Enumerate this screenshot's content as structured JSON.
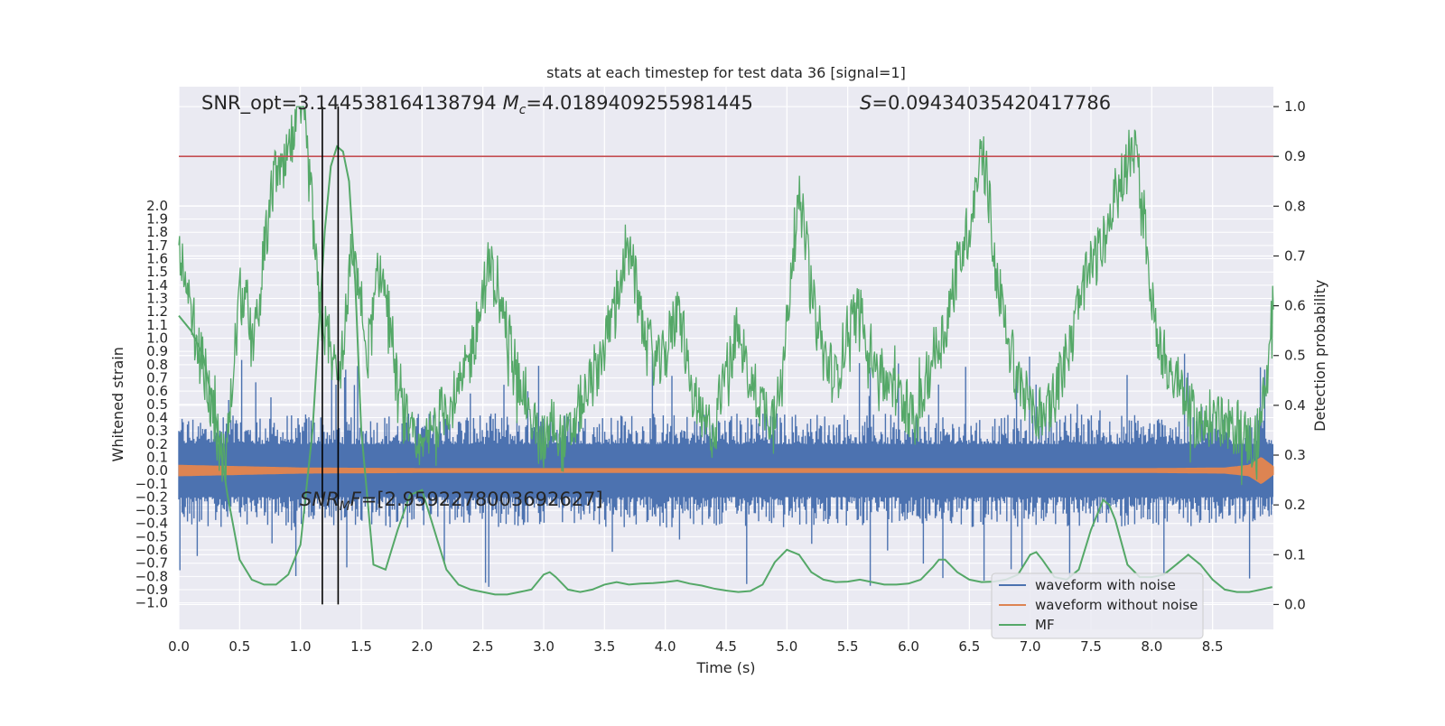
{
  "chart_data": {
    "type": "line",
    "title": "stats at each timestep for test data 36 [signal=1]",
    "xlabel": "Time (s)",
    "ylabel": "Whitened strain",
    "ylabel_right": "Detection probability",
    "xlim": [
      0.0,
      9.0
    ],
    "ylim_left": [
      -1.2,
      2.9
    ],
    "ylim_right": [
      -0.05,
      1.04
    ],
    "x_ticks": [
      "0.0",
      "0.5",
      "1.0",
      "1.5",
      "2.0",
      "2.5",
      "3.0",
      "3.5",
      "4.0",
      "4.5",
      "5.0",
      "5.5",
      "6.0",
      "6.5",
      "7.0",
      "7.5",
      "8.0",
      "8.5"
    ],
    "y_left_ticks": [
      "2.0",
      "1.9",
      "1.8",
      "1.7",
      "1.6",
      "1.5",
      "1.4",
      "1.3",
      "1.2",
      "1.1",
      "1.0",
      "0.9",
      "0.8",
      "0.7",
      "0.6",
      "0.5",
      "0.4",
      "0.3",
      "0.2",
      "0.1",
      "0.0",
      "−0.1",
      "−0.2",
      "−0.3",
      "−0.4",
      "−0.5",
      "−0.6",
      "−0.7",
      "−0.8",
      "−0.9",
      "−1.0"
    ],
    "y_right_ticks": [
      "1.0",
      "0.9",
      "0.8",
      "0.7",
      "0.6",
      "0.5",
      "0.4",
      "0.3",
      "0.2",
      "0.1",
      "0.0"
    ],
    "annotations": {
      "snr_opt": "SNR_opt=3.144538164138794",
      "mc": "=4.0189409255981445",
      "mc_symbol": "M",
      "mc_subscript": "c",
      "s": "=0.09434035420417786",
      "s_symbol": "S",
      "snr_mf": "=[2.9592278003692627]",
      "snr_mf_symbol": "SNR",
      "snr_mf_sub": "M",
      "snr_mf_tail": "F"
    },
    "threshold": 0.9,
    "vlines": [
      1.18,
      1.31
    ],
    "legend_position": "lower-right",
    "colors": {
      "background": "#eaeaf2",
      "grid": "#ffffff",
      "noise": "#4c72b0",
      "clean": "#dd8452",
      "mf": "#55a868",
      "threshold": "#c44e52",
      "vline": "#000000"
    },
    "series": [
      {
        "name": "waveform with noise",
        "axis": "left",
        "style": "dense-noise",
        "envelope": {
          "core": 0.2,
          "typical": 0.45,
          "max": 0.9
        }
      },
      {
        "name": "waveform without noise",
        "axis": "left",
        "style": "chirp",
        "x": [
          0.0,
          0.5,
          1.0,
          2.0,
          4.0,
          6.0,
          8.0,
          8.6,
          8.8,
          8.9,
          9.0
        ],
        "amplitude": [
          0.04,
          0.03,
          0.02,
          0.015,
          0.015,
          0.015,
          0.015,
          0.02,
          0.04,
          0.1,
          0.03
        ]
      },
      {
        "name": "MF",
        "axis": "right",
        "style": "smooth",
        "x": [
          0.0,
          0.1,
          0.2,
          0.3,
          0.4,
          0.5,
          0.6,
          0.7,
          0.8,
          0.9,
          1.0,
          1.1,
          1.2,
          1.25,
          1.3,
          1.35,
          1.4,
          1.45,
          1.5,
          1.6,
          1.7,
          1.8,
          1.9,
          2.0,
          2.1,
          2.2,
          2.3,
          2.4,
          2.5,
          2.6,
          2.7,
          2.8,
          2.9,
          3.0,
          3.05,
          3.1,
          3.2,
          3.3,
          3.4,
          3.5,
          3.6,
          3.7,
          3.8,
          3.9,
          4.0,
          4.1,
          4.2,
          4.3,
          4.4,
          4.5,
          4.6,
          4.7,
          4.8,
          4.9,
          5.0,
          5.1,
          5.2,
          5.3,
          5.4,
          5.5,
          5.6,
          5.7,
          5.8,
          5.9,
          6.0,
          6.1,
          6.2,
          6.25,
          6.3,
          6.4,
          6.5,
          6.6,
          6.7,
          6.8,
          6.9,
          7.0,
          7.05,
          7.1,
          7.2,
          7.3,
          7.4,
          7.5,
          7.6,
          7.65,
          7.7,
          7.8,
          7.9,
          8.0,
          8.1,
          8.2,
          8.3,
          8.4,
          8.5,
          8.6,
          8.7,
          8.8,
          8.9,
          8.99
        ],
        "y": [
          0.58,
          0.55,
          0.5,
          0.38,
          0.22,
          0.09,
          0.05,
          0.04,
          0.04,
          0.06,
          0.12,
          0.35,
          0.75,
          0.88,
          0.92,
          0.91,
          0.85,
          0.65,
          0.35,
          0.08,
          0.07,
          0.15,
          0.22,
          0.23,
          0.15,
          0.07,
          0.04,
          0.03,
          0.025,
          0.02,
          0.02,
          0.025,
          0.03,
          0.06,
          0.065,
          0.055,
          0.03,
          0.025,
          0.03,
          0.04,
          0.045,
          0.04,
          0.042,
          0.043,
          0.045,
          0.048,
          0.042,
          0.038,
          0.032,
          0.028,
          0.025,
          0.027,
          0.04,
          0.085,
          0.11,
          0.1,
          0.065,
          0.05,
          0.045,
          0.046,
          0.05,
          0.045,
          0.04,
          0.04,
          0.042,
          0.05,
          0.075,
          0.09,
          0.09,
          0.065,
          0.05,
          0.045,
          0.046,
          0.05,
          0.06,
          0.1,
          0.105,
          0.09,
          0.055,
          0.05,
          0.07,
          0.15,
          0.21,
          0.2,
          0.17,
          0.08,
          0.055,
          0.055,
          0.06,
          0.08,
          0.1,
          0.08,
          0.05,
          0.03,
          0.025,
          0.025,
          0.03,
          0.035
        ]
      },
      {
        "name": "Detection probability",
        "axis": "right",
        "style": "noisy",
        "legend": false,
        "x": [
          0.0,
          0.05,
          0.1,
          0.15,
          0.2,
          0.25,
          0.3,
          0.35,
          0.4,
          0.45,
          0.5,
          0.55,
          0.6,
          0.65,
          0.7,
          0.75,
          0.8,
          0.85,
          0.9,
          0.95,
          1.0,
          1.05,
          1.1,
          1.15,
          1.2,
          1.25,
          1.3,
          1.35,
          1.4,
          1.45,
          1.5,
          1.55,
          1.6,
          1.65,
          1.7,
          1.75,
          1.8,
          1.85,
          1.9,
          1.95,
          2.0,
          2.1,
          2.2,
          2.3,
          2.4,
          2.5,
          2.55,
          2.6,
          2.65,
          2.7,
          2.75,
          2.8,
          2.85,
          2.9,
          2.95,
          3.0,
          3.05,
          3.1,
          3.15,
          3.2,
          3.3,
          3.4,
          3.5,
          3.6,
          3.65,
          3.7,
          3.75,
          3.8,
          3.85,
          3.9,
          3.95,
          4.0,
          4.05,
          4.1,
          4.15,
          4.2,
          4.25,
          4.3,
          4.4,
          4.5,
          4.6,
          4.7,
          4.8,
          4.9,
          5.0,
          5.05,
          5.1,
          5.15,
          5.2,
          5.3,
          5.4,
          5.5,
          5.6,
          5.7,
          5.8,
          5.9,
          6.0,
          6.05,
          6.1,
          6.2,
          6.3,
          6.4,
          6.5,
          6.55,
          6.6,
          6.65,
          6.7,
          6.8,
          6.9,
          7.0,
          7.1,
          7.2,
          7.3,
          7.4,
          7.5,
          7.6,
          7.7,
          7.8,
          7.85,
          7.9,
          7.95,
          8.0,
          8.05,
          8.1,
          8.2,
          8.3,
          8.4,
          8.5,
          8.6,
          8.7,
          8.8,
          8.85,
          8.9,
          8.95,
          9.0
        ],
        "y": [
          0.75,
          0.62,
          0.58,
          0.52,
          0.48,
          0.42,
          0.35,
          0.3,
          0.32,
          0.48,
          0.62,
          0.6,
          0.52,
          0.58,
          0.7,
          0.8,
          0.88,
          0.85,
          0.9,
          0.95,
          1.0,
          0.92,
          0.78,
          0.6,
          0.55,
          0.52,
          0.45,
          0.5,
          0.65,
          0.7,
          0.6,
          0.5,
          0.58,
          0.68,
          0.62,
          0.55,
          0.42,
          0.38,
          0.35,
          0.3,
          0.3,
          0.36,
          0.4,
          0.42,
          0.5,
          0.62,
          0.68,
          0.65,
          0.6,
          0.55,
          0.5,
          0.45,
          0.42,
          0.38,
          0.34,
          0.33,
          0.35,
          0.38,
          0.32,
          0.33,
          0.4,
          0.45,
          0.52,
          0.62,
          0.68,
          0.7,
          0.65,
          0.58,
          0.52,
          0.5,
          0.48,
          0.5,
          0.55,
          0.58,
          0.55,
          0.45,
          0.4,
          0.36,
          0.35,
          0.48,
          0.55,
          0.45,
          0.4,
          0.38,
          0.56,
          0.72,
          0.8,
          0.75,
          0.62,
          0.5,
          0.45,
          0.55,
          0.6,
          0.5,
          0.45,
          0.42,
          0.4,
          0.35,
          0.4,
          0.5,
          0.55,
          0.68,
          0.76,
          0.84,
          0.9,
          0.85,
          0.7,
          0.55,
          0.45,
          0.4,
          0.38,
          0.42,
          0.5,
          0.6,
          0.68,
          0.72,
          0.82,
          0.88,
          0.92,
          0.85,
          0.75,
          0.6,
          0.55,
          0.5,
          0.45,
          0.4,
          0.35,
          0.38,
          0.35,
          0.36,
          0.33,
          0.32,
          0.38,
          0.45,
          0.58
        ]
      }
    ]
  },
  "legend": [
    {
      "label": "waveform with noise",
      "color": "#4c72b0"
    },
    {
      "label": "waveform without noise",
      "color": "#dd8452"
    },
    {
      "label": "MF",
      "color": "#55a868"
    }
  ]
}
